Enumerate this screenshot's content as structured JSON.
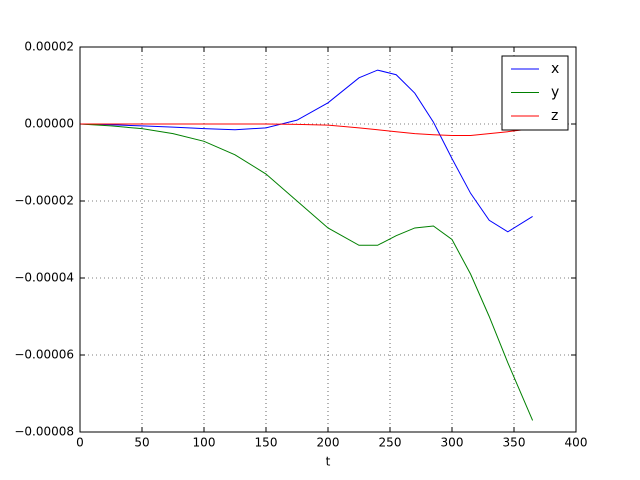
{
  "chart_data": {
    "type": "line",
    "x_label": "t",
    "x": [
      0,
      25,
      50,
      75,
      100,
      125,
      150,
      175,
      200,
      225,
      240,
      255,
      270,
      285,
      300,
      315,
      330,
      345,
      365
    ],
    "series": [
      {
        "name": "x",
        "color": "#0000ff",
        "values": [
          0,
          -2e-07,
          -5e-07,
          -8e-07,
          -1.2e-06,
          -1.5e-06,
          -1e-06,
          1e-06,
          5.5e-06,
          1.2e-05,
          1.4e-05,
          1.28e-05,
          8e-06,
          5e-07,
          -9e-06,
          -1.8e-05,
          -2.5e-05,
          -2.8e-05,
          -2.4e-05
        ]
      },
      {
        "name": "y",
        "color": "#008000",
        "values": [
          0,
          -5e-07,
          -1.2e-06,
          -2.5e-06,
          -4.5e-06,
          -8e-06,
          -1.3e-05,
          -2e-05,
          -2.7e-05,
          -3.15e-05,
          -3.15e-05,
          -2.9e-05,
          -2.7e-05,
          -2.65e-05,
          -3e-05,
          -3.9e-05,
          -5e-05,
          -6.2e-05,
          -7.7e-05
        ]
      },
      {
        "name": "z",
        "color": "#ff0000",
        "values": [
          0,
          0,
          0,
          0,
          0,
          0,
          0,
          -1e-07,
          -3e-07,
          -1e-06,
          -1.5e-06,
          -2e-06,
          -2.5e-06,
          -2.8e-06,
          -3e-06,
          -3e-06,
          -2.5e-06,
          -2e-06,
          -1.2e-06
        ]
      }
    ],
    "xlim": [
      0,
      400
    ],
    "xticks": [
      0,
      50,
      100,
      150,
      200,
      250,
      300,
      350,
      400
    ],
    "ylim": [
      -8e-05,
      2e-05
    ],
    "yticks": [
      {
        "value": -8e-05,
        "label": "−0.00008"
      },
      {
        "value": -6e-05,
        "label": "−0.00006"
      },
      {
        "value": -4e-05,
        "label": "−0.00004"
      },
      {
        "value": -2e-05,
        "label": "−0.00002"
      },
      {
        "value": 0,
        "label": "0.00000"
      },
      {
        "value": 2e-05,
        "label": "0.00002"
      }
    ],
    "grid": true,
    "legend": "upper right"
  }
}
